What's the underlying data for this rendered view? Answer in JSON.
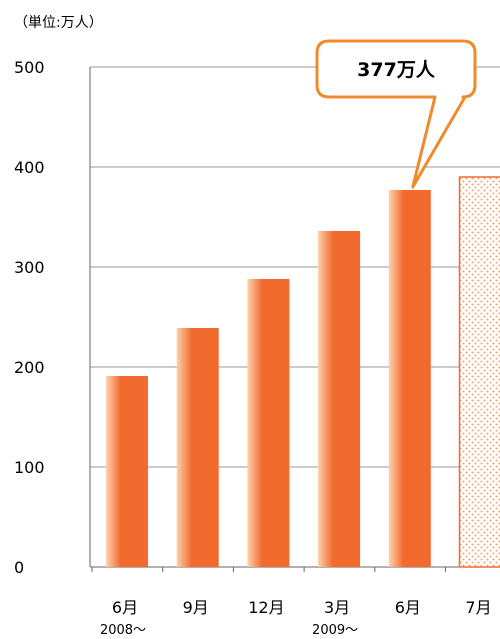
{
  "chart_data": {
    "type": "bar",
    "unit_label": "（単位:万人）",
    "categories": [
      "6月",
      "9月",
      "12月",
      "3月",
      "6月",
      "7月"
    ],
    "year_labels": [
      {
        "category_index": 0,
        "text": "2008〜"
      },
      {
        "category_index": 3,
        "text": "2009〜"
      }
    ],
    "values": [
      191,
      239,
      288,
      336,
      377,
      390
    ],
    "projected_index": 5,
    "ylim": [
      0,
      500
    ],
    "yticks": [
      0,
      100,
      200,
      300,
      400,
      500
    ],
    "grid": true,
    "callout": {
      "category_index": 4,
      "text": "377万人"
    },
    "colors": {
      "bar_light": "#FDD2AE",
      "bar_dark": "#F26B2E",
      "callout_border": "#F08A2D",
      "projected_dot": "#F4A070",
      "grid": "#999999"
    }
  }
}
